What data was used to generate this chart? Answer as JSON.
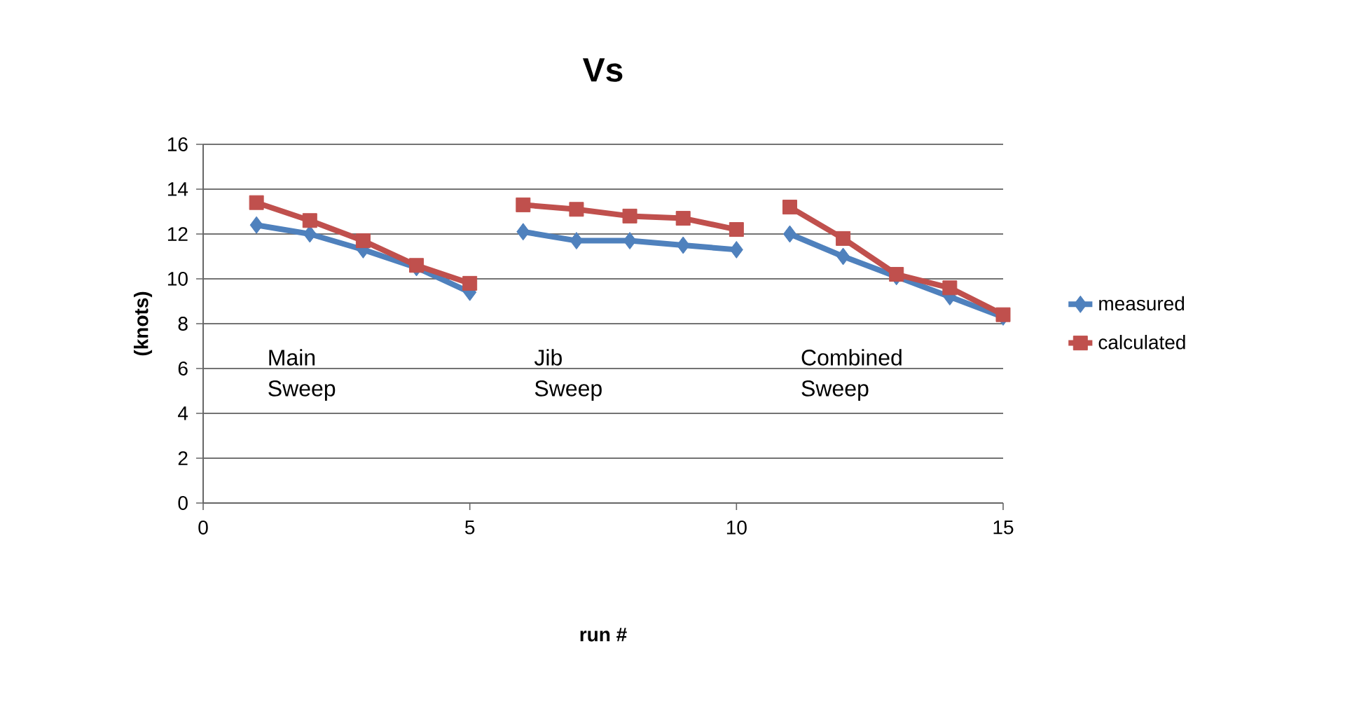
{
  "chart_data": {
    "type": "line",
    "title": "Vs",
    "xlabel": "run #",
    "ylabel": "(knots)",
    "x": [
      1,
      2,
      3,
      4,
      5,
      5.5,
      6,
      7,
      8,
      9,
      10,
      10.5,
      11,
      12,
      13,
      14,
      15
    ],
    "series": [
      {
        "name": "measured",
        "color": "#4f81bd",
        "marker": "diamond",
        "values": [
          12.4,
          12.0,
          11.3,
          10.5,
          9.4,
          null,
          12.1,
          11.7,
          11.7,
          11.5,
          11.3,
          null,
          12.0,
          11.0,
          10.1,
          9.2,
          8.3
        ]
      },
      {
        "name": "calculated",
        "color": "#c0504d",
        "marker": "square",
        "values": [
          13.4,
          12.6,
          11.7,
          10.6,
          9.8,
          null,
          13.3,
          13.1,
          12.8,
          12.7,
          12.2,
          null,
          13.2,
          11.8,
          10.2,
          9.6,
          8.4
        ]
      }
    ],
    "xlim": [
      0,
      15
    ],
    "xticks": [
      0,
      5,
      10,
      15
    ],
    "ylim": [
      0,
      16
    ],
    "yticks": [
      0,
      2,
      4,
      6,
      8,
      10,
      12,
      14,
      16
    ],
    "grid": "y",
    "legend": "right",
    "line_style": "solid",
    "annotations": [
      "Main Sweep",
      "Jib Sweep",
      "Combined Sweep"
    ]
  }
}
